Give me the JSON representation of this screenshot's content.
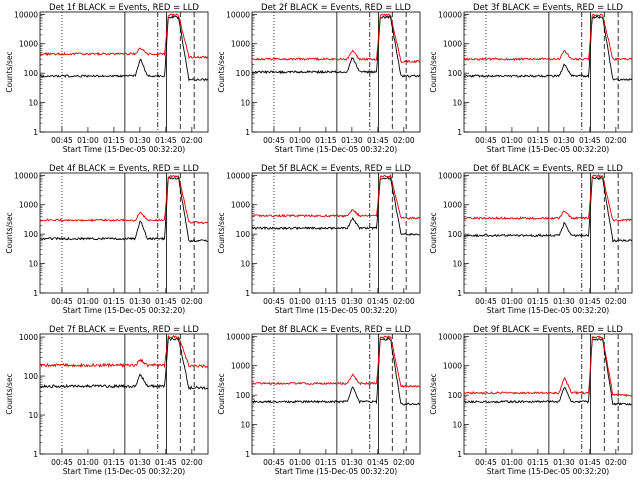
{
  "figure": {
    "x_tick_labels": [
      "00:45",
      "01:00",
      "01:15",
      "01:30",
      "01:45",
      "02:00"
    ],
    "x_axis_label": "Start Time (15-Dec-05 00:32:20)",
    "y_axis_label": "Counts/sec",
    "y_tick_labels": [
      "1",
      "10",
      "100",
      "1000",
      "10000"
    ]
  },
  "chart_data": [
    {
      "type": "line",
      "title": "Det 1f BLACK = Events, RED = LLD",
      "ylabel": "Counts/sec",
      "xlabel": "Start Time (15-Dec-05 00:32:20)",
      "x_unit": "minutes after 00:32:20",
      "xlim": [
        0,
        97
      ],
      "ylim": [
        1,
        12000
      ],
      "y_scale": "log",
      "series": [
        {
          "name": "Events",
          "color": "#000000",
          "baseline": 80,
          "bump": 300,
          "peak": 8000,
          "post": 60
        },
        {
          "name": "LLD",
          "color": "#e00000",
          "baseline": 450,
          "bump": 700,
          "peak": 9500,
          "post": 350
        }
      ]
    },
    {
      "type": "line",
      "title": "Det 2f BLACK = Events, RED = LLD",
      "ylabel": "Counts/sec",
      "xlabel": "Start Time (15-Dec-05 00:32:20)",
      "x_unit": "minutes after 00:32:20",
      "xlim": [
        0,
        97
      ],
      "ylim": [
        1,
        12000
      ],
      "y_scale": "log",
      "series": [
        {
          "name": "Events",
          "color": "#000000",
          "baseline": 110,
          "bump": 350,
          "peak": 8000,
          "post": 80
        },
        {
          "name": "LLD",
          "color": "#e00000",
          "baseline": 300,
          "bump": 600,
          "peak": 9500,
          "post": 250
        }
      ]
    },
    {
      "type": "line",
      "title": "Det 3f BLACK = Events, RED = LLD",
      "ylabel": "Counts/sec",
      "xlabel": "Start Time (15-Dec-05 00:32:20)",
      "x_unit": "minutes after 00:32:20",
      "xlim": [
        0,
        97
      ],
      "ylim": [
        1,
        12000
      ],
      "y_scale": "log",
      "series": [
        {
          "name": "Events",
          "color": "#000000",
          "baseline": 80,
          "bump": 200,
          "peak": 8000,
          "post": 60
        },
        {
          "name": "LLD",
          "color": "#e00000",
          "baseline": 300,
          "bump": 600,
          "peak": 9500,
          "post": 300
        }
      ]
    },
    {
      "type": "line",
      "title": "Det 4f BLACK = Events, RED = LLD",
      "ylabel": "Counts/sec",
      "xlabel": "Start Time (15-Dec-05 00:32:20)",
      "x_unit": "minutes after 00:32:20",
      "xlim": [
        0,
        97
      ],
      "ylim": [
        1,
        12000
      ],
      "y_scale": "log",
      "series": [
        {
          "name": "Events",
          "color": "#000000",
          "baseline": 70,
          "bump": 300,
          "peak": 8000,
          "post": 60
        },
        {
          "name": "LLD",
          "color": "#e00000",
          "baseline": 300,
          "bump": 550,
          "peak": 9500,
          "post": 250
        }
      ]
    },
    {
      "type": "line",
      "title": "Det 5f BLACK = Events, RED = LLD",
      "ylabel": "Counts/sec",
      "xlabel": "Start Time (15-Dec-05 00:32:20)",
      "x_unit": "minutes after 00:32:20",
      "xlim": [
        0,
        97
      ],
      "ylim": [
        1,
        12000
      ],
      "y_scale": "log",
      "series": [
        {
          "name": "Events",
          "color": "#000000",
          "baseline": 160,
          "bump": 350,
          "peak": 8000,
          "post": 100
        },
        {
          "name": "LLD",
          "color": "#e00000",
          "baseline": 420,
          "bump": 700,
          "peak": 9500,
          "post": 350
        }
      ]
    },
    {
      "type": "line",
      "title": "Det 6f BLACK = Events, RED = LLD",
      "ylabel": "Counts/sec",
      "xlabel": "Start Time (15-Dec-05 00:32:20)",
      "x_unit": "minutes after 00:32:20",
      "xlim": [
        0,
        97
      ],
      "ylim": [
        1,
        12000
      ],
      "y_scale": "log",
      "series": [
        {
          "name": "Events",
          "color": "#000000",
          "baseline": 90,
          "bump": 250,
          "peak": 8000,
          "post": 60
        },
        {
          "name": "LLD",
          "color": "#e00000",
          "baseline": 350,
          "bump": 650,
          "peak": 9500,
          "post": 300
        }
      ]
    },
    {
      "type": "line",
      "title": "Det 7f BLACK = Events, RED = LLD",
      "ylabel": "Counts/sec",
      "xlabel": "Start Time (15-Dec-05 00:32:20)",
      "x_unit": "minutes after 00:32:20",
      "xlim": [
        0,
        97
      ],
      "ylim": [
        1,
        1200
      ],
      "y_scale": "log",
      "series": [
        {
          "name": "Events",
          "color": "#000000",
          "baseline": 55,
          "bump": 110,
          "peak": 900,
          "post": 50
        },
        {
          "name": "LLD",
          "color": "#e00000",
          "baseline": 190,
          "bump": 260,
          "peak": 1000,
          "post": 180
        }
      ]
    },
    {
      "type": "line",
      "title": "Det 8f BLACK = Events, RED = LLD",
      "ylabel": "Counts/sec",
      "xlabel": "Start Time (15-Dec-05 00:32:20)",
      "x_unit": "minutes after 00:32:20",
      "xlim": [
        0,
        97
      ],
      "ylim": [
        1,
        12000
      ],
      "y_scale": "log",
      "series": [
        {
          "name": "Events",
          "color": "#000000",
          "baseline": 60,
          "bump": 200,
          "peak": 8000,
          "post": 50
        },
        {
          "name": "LLD",
          "color": "#e00000",
          "baseline": 250,
          "bump": 500,
          "peak": 9500,
          "post": 200
        }
      ]
    },
    {
      "type": "line",
      "title": "Det 9f BLACK = Events, RED = LLD",
      "ylabel": "Counts/sec",
      "xlabel": "Start Time (15-Dec-05 00:32:20)",
      "x_unit": "minutes after 00:32:20",
      "xlim": [
        0,
        97
      ],
      "ylim": [
        1,
        12000
      ],
      "y_scale": "log",
      "series": [
        {
          "name": "Events",
          "color": "#000000",
          "baseline": 60,
          "bump": 200,
          "peak": 8000,
          "post": 50
        },
        {
          "name": "LLD",
          "color": "#e00000",
          "baseline": 120,
          "bump": 400,
          "peak": 9500,
          "post": 100
        }
      ]
    }
  ]
}
